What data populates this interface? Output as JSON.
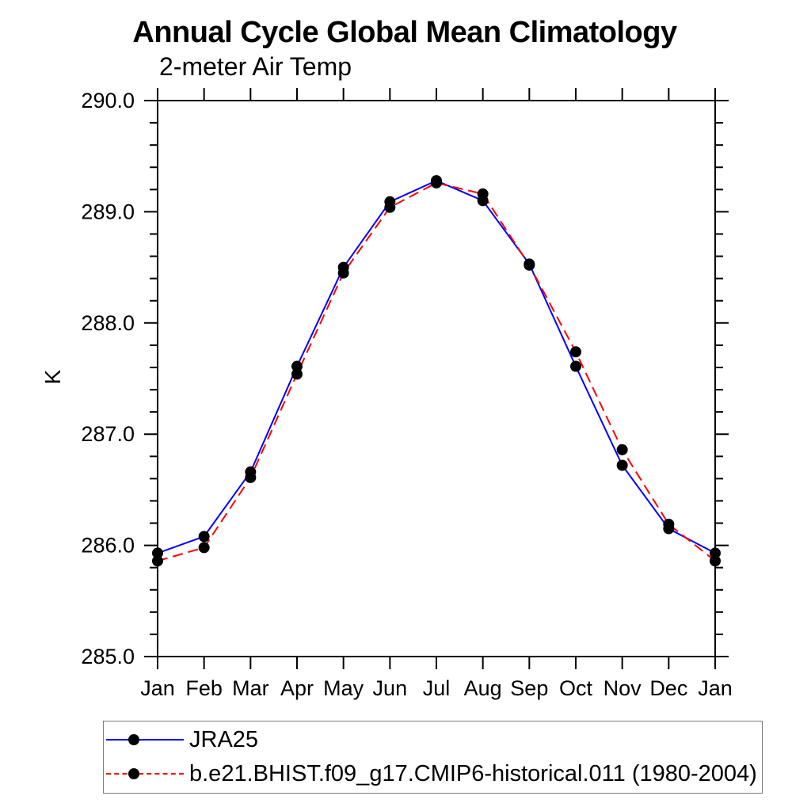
{
  "chart_data": {
    "type": "line",
    "title": "Annual Cycle Global Mean Climatology",
    "subtitle": "2-meter Air Temp",
    "ylabel": "K",
    "xlabel": "",
    "categories": [
      "Jan",
      "Feb",
      "Mar",
      "Apr",
      "May",
      "Jun",
      "Jul",
      "Aug",
      "Sep",
      "Oct",
      "Nov",
      "Dec",
      "Jan"
    ],
    "series": [
      {
        "name": "JRA25",
        "color": "#0000ff",
        "style": "solid",
        "marker": "circle",
        "marker_color": "#000000",
        "values": [
          285.93,
          286.08,
          286.66,
          287.61,
          288.5,
          289.09,
          289.28,
          289.1,
          288.53,
          287.61,
          286.72,
          286.15,
          285.93
        ]
      },
      {
        "name": "b.e21.BHIST.f09_g17.CMIP6-historical.011 (1980-2004)",
        "color": "#ff0000",
        "style": "dashed",
        "marker": "circle",
        "marker_color": "#000000",
        "values": [
          285.86,
          285.98,
          286.61,
          287.54,
          288.45,
          289.04,
          289.26,
          289.16,
          288.52,
          287.74,
          286.86,
          286.19,
          285.86
        ]
      }
    ],
    "ylim": [
      285.0,
      290.0
    ],
    "ytick_labels": [
      "285.0",
      "286.0",
      "287.0",
      "288.0",
      "289.0",
      "290.0"
    ],
    "ytick_minor_interval": 0.2,
    "grid": false,
    "legend_position": "bottom-left-outside",
    "axis_color": "#000000",
    "text_color": "#000000",
    "background": "#ffffff"
  }
}
